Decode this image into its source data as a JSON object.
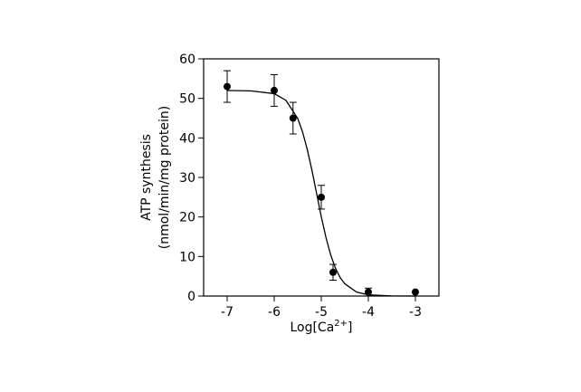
{
  "chart_data": {
    "type": "scatter",
    "x_label": [
      "Log[Ca",
      "2+",
      "]"
    ],
    "y_label": [
      "ATP synthesis",
      "(nmol/min/mg protein)"
    ],
    "xlim": [
      -7.5,
      -2.5
    ],
    "xticks": [
      -7,
      -6,
      -5,
      -4,
      -3
    ],
    "ylim": [
      0,
      60
    ],
    "yticks": [
      0,
      10,
      20,
      30,
      40,
      50,
      60
    ],
    "color": "#000000",
    "series": [
      {
        "x": [
          -7,
          -6,
          -5.6,
          -5,
          -4.75,
          -4,
          -3
        ],
        "values": [
          53,
          52,
          45,
          25,
          6,
          1,
          1
        ],
        "errors": [
          4,
          4,
          4,
          3,
          2,
          1,
          0
        ]
      }
    ],
    "fit": {
      "x": [
        -7,
        -6.5,
        -6,
        -5.75,
        -5.5,
        -5.4,
        -5.3,
        -5.2,
        -5.1,
        -5,
        -4.9,
        -4.8,
        -4.7,
        -4.6,
        -4.5,
        -4.25,
        -4,
        -3.5,
        -3
      ],
      "values": [
        52.0,
        51.9,
        51.2,
        49.5,
        44.9,
        41.6,
        37.2,
        31.9,
        26.0,
        20.1,
        14.8,
        10.4,
        7.1,
        4.7,
        3.1,
        1.0,
        0.3,
        0.03,
        0.0
      ]
    }
  }
}
